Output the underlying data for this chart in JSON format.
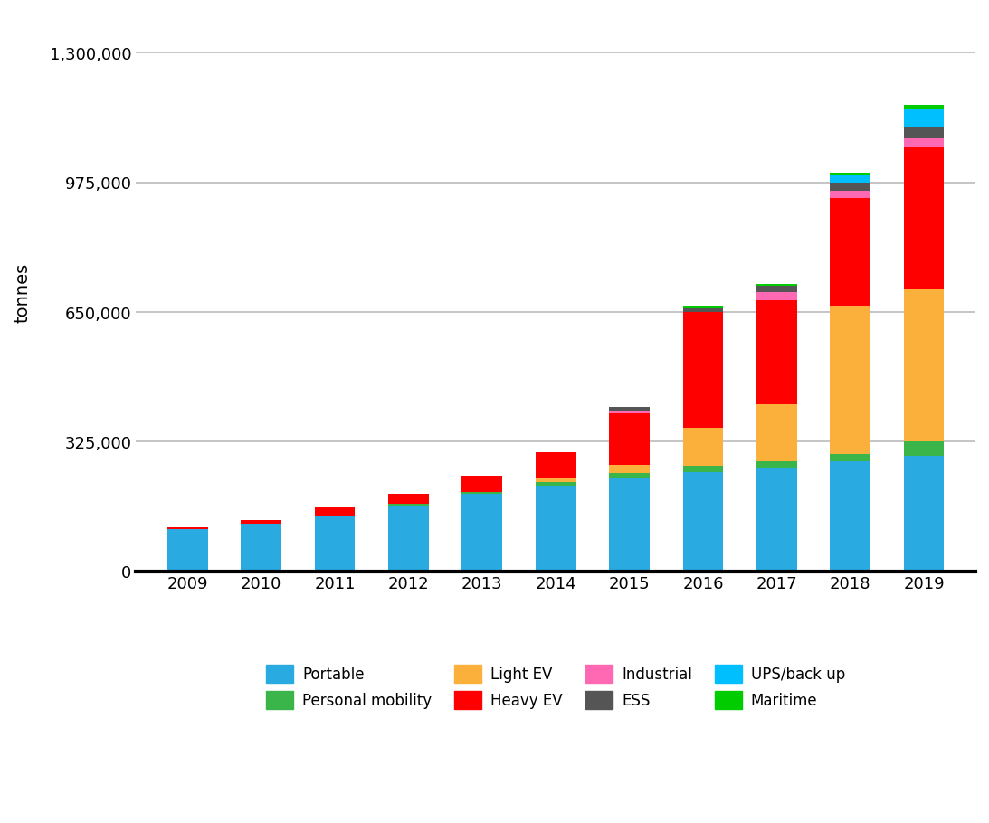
{
  "years": [
    2009,
    2010,
    2011,
    2012,
    2013,
    2014,
    2015,
    2016,
    2017,
    2018,
    2019
  ],
  "categories": [
    "Portable",
    "Personal mobility",
    "Light EV",
    "Heavy EV",
    "Industrial",
    "ESS",
    "UPS/back up",
    "Maritime"
  ],
  "colors": [
    "#29ABE2",
    "#39B54A",
    "#FBB03B",
    "#FF0000",
    "#FF69B4",
    "#555555",
    "#00BFFF",
    "#00CC00"
  ],
  "data": {
    "Portable": [
      105000,
      120000,
      140000,
      165000,
      195000,
      215000,
      235000,
      250000,
      260000,
      275000,
      290000
    ],
    "Personal mobility": [
      0,
      0,
      0,
      5000,
      5000,
      8000,
      12000,
      15000,
      15000,
      20000,
      35000
    ],
    "Light EV": [
      0,
      0,
      0,
      0,
      0,
      10000,
      20000,
      95000,
      145000,
      370000,
      385000
    ],
    "Heavy EV": [
      5000,
      8000,
      20000,
      25000,
      40000,
      65000,
      130000,
      290000,
      260000,
      270000,
      355000
    ],
    "Industrial": [
      0,
      0,
      0,
      0,
      0,
      0,
      5000,
      0,
      20000,
      20000,
      20000
    ],
    "ESS": [
      0,
      0,
      0,
      0,
      0,
      0,
      10000,
      10000,
      15000,
      20000,
      30000
    ],
    "UPS/back up": [
      0,
      0,
      0,
      0,
      0,
      0,
      0,
      0,
      0,
      20000,
      45000
    ],
    "Maritime": [
      0,
      0,
      0,
      0,
      0,
      0,
      0,
      5000,
      5000,
      5000,
      10000
    ]
  },
  "ylabel": "tonnes",
  "ylim": [
    0,
    1400000
  ],
  "yticks": [
    0,
    325000,
    650000,
    975000,
    1300000
  ],
  "ytick_labels": [
    "0",
    "325,000",
    "650,000",
    "975,000",
    "1,300,000"
  ],
  "background_color": "#FFFFFF",
  "grid_color": "#BBBBBB",
  "bar_width": 0.55,
  "legend_row1": [
    "Portable",
    "Personal mobility",
    "Light EV",
    "Heavy EV"
  ],
  "legend_row2": [
    "Industrial",
    "ESS",
    "UPS/back up",
    "Maritime"
  ]
}
